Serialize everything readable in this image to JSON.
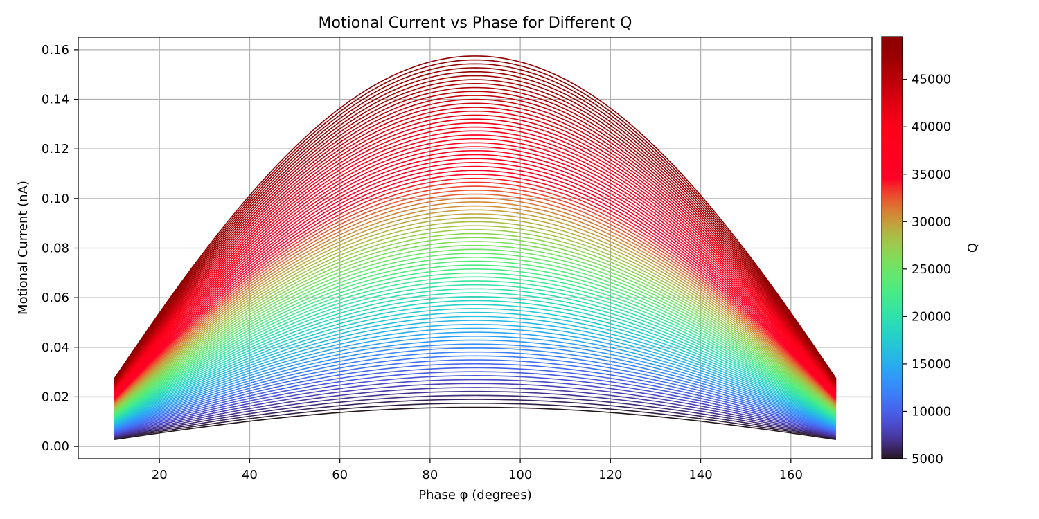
{
  "chart_data": {
    "type": "line",
    "title": "Motional Current vs Phase for Different Q",
    "xlabel": "Phase φ (degrees)",
    "ylabel": "Motional Current (nA)",
    "xlim": [
      2,
      178
    ],
    "ylim": [
      -0.005,
      0.165
    ],
    "x_ticks": [
      20,
      40,
      60,
      80,
      100,
      120,
      140,
      160
    ],
    "y_ticks": [
      0.0,
      0.02,
      0.04,
      0.06,
      0.08,
      0.1,
      0.12,
      0.14,
      0.16
    ],
    "x_tick_labels": [
      "20",
      "40",
      "60",
      "80",
      "100",
      "120",
      "140",
      "160"
    ],
    "y_tick_labels": [
      "0.00",
      "0.02",
      "0.04",
      "0.06",
      "0.08",
      "0.10",
      "0.12",
      "0.14",
      "0.16"
    ],
    "grid": true,
    "x_range": [
      10,
      170
    ],
    "model": "current = peak * sin(phase)",
    "series_family": {
      "parameter": "Q",
      "q_min": 5000,
      "q_max": 49500,
      "q_step": 500,
      "peak_at_q_min": 0.0158,
      "peak_at_q_max": 0.1575
    },
    "colorbar": {
      "label": "Q",
      "min": 5000,
      "max": 49500,
      "colormap": "turbo",
      "ticks": [
        5000,
        10000,
        15000,
        20000,
        25000,
        30000,
        35000,
        40000,
        45000
      ],
      "tick_labels": [
        "5000",
        "10000",
        "15000",
        "20000",
        "25000",
        "30000",
        "35000",
        "40000",
        "45000"
      ]
    }
  }
}
